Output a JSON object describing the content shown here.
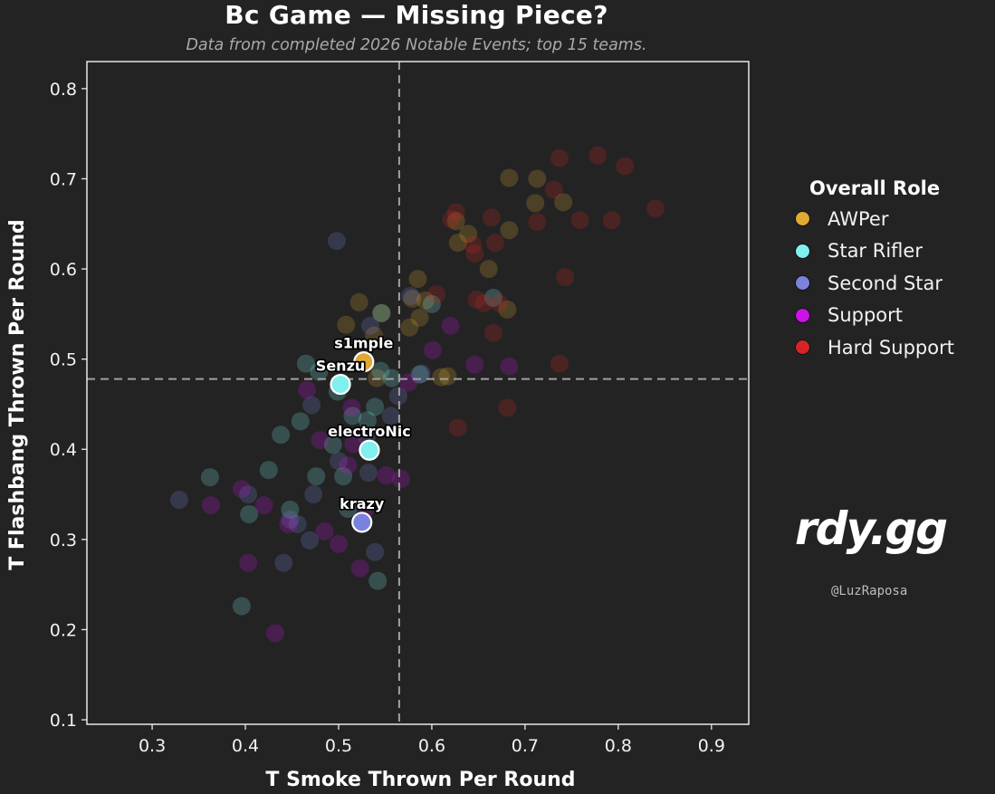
{
  "title": "Bc Game — Missing Piece?",
  "subtitle": "Data from completed 2026 Notable Events; top 15 teams.",
  "legend": {
    "title": "Overall Role",
    "items": [
      {
        "label": "AWPer",
        "color": "#e0a934"
      },
      {
        "label": "Star Rifler",
        "color": "#7ff0ee"
      },
      {
        "label": "Second Star",
        "color": "#7b82de"
      },
      {
        "label": "Support",
        "color": "#cc12e6"
      },
      {
        "label": "Hard Support",
        "color": "#d52424"
      }
    ]
  },
  "brand": {
    "logo_text": "rdy.gg",
    "handle": "@LuzRaposa"
  },
  "chart_data": {
    "type": "scatter",
    "xlabel": "T Smoke Thrown Per Round",
    "ylabel": "T Flashbang Thrown Per Round",
    "xlim": [
      0.23,
      0.94
    ],
    "ylim": [
      0.095,
      0.83
    ],
    "xticks": [
      "0.3",
      "0.4",
      "0.5",
      "0.6",
      "0.7",
      "0.8",
      "0.9"
    ],
    "yticks": [
      "0.1",
      "0.2",
      "0.3",
      "0.4",
      "0.5",
      "0.6",
      "0.7",
      "0.8"
    ],
    "reference_lines": {
      "x_mean": 0.565,
      "y_mean": 0.478
    },
    "grid": false,
    "legend_position": "right",
    "highlighted": [
      {
        "name": "s1mple",
        "x": 0.527,
        "y": 0.497,
        "role": "AWPer"
      },
      {
        "name": "Senzu",
        "x": 0.502,
        "y": 0.472,
        "role": "Star Rifler"
      },
      {
        "name": "electroNic",
        "x": 0.533,
        "y": 0.399,
        "role": "Star Rifler"
      },
      {
        "name": "krazy",
        "x": 0.525,
        "y": 0.319,
        "role": "Second Star"
      }
    ],
    "series": [
      {
        "name": "AWPer",
        "points": [
          [
            0.683,
            0.701
          ],
          [
            0.713,
            0.7
          ],
          [
            0.626,
            0.653
          ],
          [
            0.639,
            0.639
          ],
          [
            0.683,
            0.643
          ],
          [
            0.711,
            0.673
          ],
          [
            0.741,
            0.674
          ],
          [
            0.628,
            0.629
          ],
          [
            0.661,
            0.6
          ],
          [
            0.585,
            0.589
          ],
          [
            0.522,
            0.563
          ],
          [
            0.546,
            0.551
          ],
          [
            0.579,
            0.567
          ],
          [
            0.593,
            0.565
          ],
          [
            0.681,
            0.555
          ],
          [
            0.587,
            0.546
          ],
          [
            0.508,
            0.538
          ],
          [
            0.576,
            0.535
          ],
          [
            0.538,
            0.526
          ],
          [
            0.541,
            0.479
          ],
          [
            0.61,
            0.48
          ],
          [
            0.617,
            0.481
          ]
        ]
      },
      {
        "name": "Star Rifler",
        "points": [
          [
            0.6,
            0.561
          ],
          [
            0.666,
            0.568
          ],
          [
            0.546,
            0.551
          ],
          [
            0.465,
            0.495
          ],
          [
            0.479,
            0.486
          ],
          [
            0.545,
            0.487
          ],
          [
            0.557,
            0.479
          ],
          [
            0.587,
            0.483
          ],
          [
            0.499,
            0.464
          ],
          [
            0.539,
            0.447
          ],
          [
            0.515,
            0.437
          ],
          [
            0.531,
            0.432
          ],
          [
            0.459,
            0.431
          ],
          [
            0.438,
            0.416
          ],
          [
            0.494,
            0.405
          ],
          [
            0.425,
            0.377
          ],
          [
            0.476,
            0.37
          ],
          [
            0.505,
            0.37
          ],
          [
            0.362,
            0.369
          ],
          [
            0.448,
            0.333
          ],
          [
            0.51,
            0.334
          ],
          [
            0.542,
            0.254
          ],
          [
            0.396,
            0.226
          ],
          [
            0.404,
            0.328
          ]
        ]
      },
      {
        "name": "Second Star",
        "points": [
          [
            0.498,
            0.631
          ],
          [
            0.577,
            0.57
          ],
          [
            0.534,
            0.537
          ],
          [
            0.589,
            0.484
          ],
          [
            0.564,
            0.459
          ],
          [
            0.556,
            0.437
          ],
          [
            0.471,
            0.449
          ],
          [
            0.532,
            0.374
          ],
          [
            0.5,
            0.387
          ],
          [
            0.53,
            0.414
          ],
          [
            0.473,
            0.35
          ],
          [
            0.403,
            0.35
          ],
          [
            0.329,
            0.344
          ],
          [
            0.448,
            0.322
          ],
          [
            0.469,
            0.299
          ],
          [
            0.539,
            0.286
          ],
          [
            0.441,
            0.274
          ],
          [
            0.456,
            0.317
          ]
        ]
      },
      {
        "name": "Support",
        "points": [
          [
            0.62,
            0.537
          ],
          [
            0.601,
            0.51
          ],
          [
            0.646,
            0.494
          ],
          [
            0.683,
            0.492
          ],
          [
            0.575,
            0.474
          ],
          [
            0.466,
            0.466
          ],
          [
            0.514,
            0.446
          ],
          [
            0.48,
            0.41
          ],
          [
            0.516,
            0.406
          ],
          [
            0.51,
            0.382
          ],
          [
            0.567,
            0.367
          ],
          [
            0.551,
            0.371
          ],
          [
            0.396,
            0.356
          ],
          [
            0.363,
            0.338
          ],
          [
            0.42,
            0.338
          ],
          [
            0.529,
            0.334
          ],
          [
            0.446,
            0.317
          ],
          [
            0.485,
            0.309
          ],
          [
            0.5,
            0.295
          ],
          [
            0.403,
            0.274
          ],
          [
            0.523,
            0.268
          ],
          [
            0.432,
            0.196
          ]
        ]
      },
      {
        "name": "Hard Support",
        "points": [
          [
            0.737,
            0.723
          ],
          [
            0.778,
            0.726
          ],
          [
            0.807,
            0.714
          ],
          [
            0.731,
            0.688
          ],
          [
            0.626,
            0.663
          ],
          [
            0.621,
            0.655
          ],
          [
            0.664,
            0.657
          ],
          [
            0.713,
            0.652
          ],
          [
            0.759,
            0.654
          ],
          [
            0.793,
            0.654
          ],
          [
            0.84,
            0.667
          ],
          [
            0.644,
            0.627
          ],
          [
            0.668,
            0.629
          ],
          [
            0.646,
            0.617
          ],
          [
            0.743,
            0.591
          ],
          [
            0.605,
            0.572
          ],
          [
            0.648,
            0.566
          ],
          [
            0.656,
            0.562
          ],
          [
            0.672,
            0.562
          ],
          [
            0.666,
            0.529
          ],
          [
            0.737,
            0.495
          ],
          [
            0.628,
            0.424
          ],
          [
            0.681,
            0.446
          ]
        ]
      }
    ]
  }
}
